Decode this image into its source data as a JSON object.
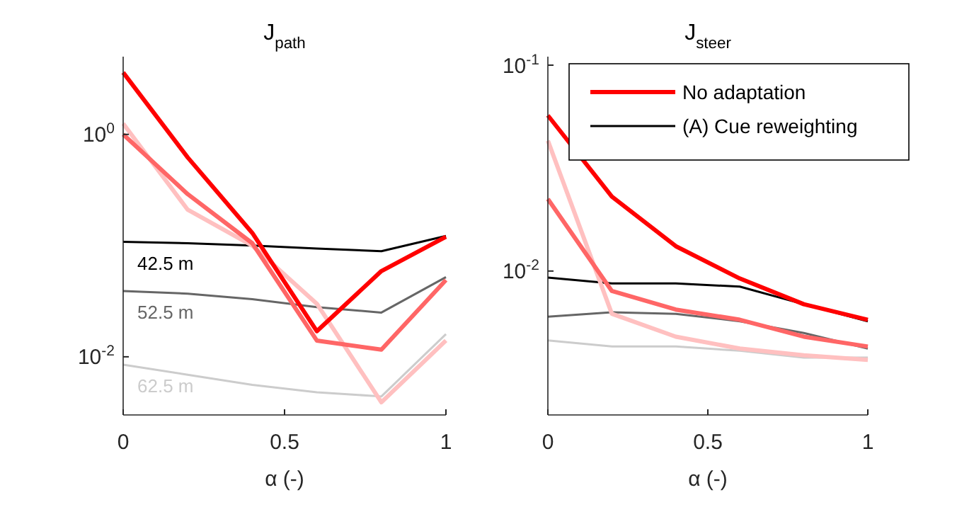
{
  "chart_data": [
    {
      "type": "line",
      "title": "J$_{path}$",
      "xlabel": "α (-)",
      "log": "y",
      "x": [
        0,
        0.2,
        0.4,
        0.6,
        0.8,
        1
      ],
      "xlim": [
        0,
        1
      ],
      "xticks": [
        0,
        0.5,
        1
      ],
      "ylim": [
        0.003,
        5
      ],
      "yticks": [
        {
          "value": 0.01,
          "label": "10$^{-2}$"
        },
        {
          "value": 1,
          "label": "10$^{0}$"
        }
      ],
      "grid": false,
      "legend": false,
      "annotations": [
        "42.5 m",
        "52.5 m",
        "62.5 m"
      ],
      "series": [
        {
          "color": "#000000",
          "values": [
            0.108,
            0.105,
            0.1,
            0.094,
            0.089,
            0.122
          ]
        },
        {
          "color": "#666666",
          "values": [
            0.039,
            0.037,
            0.033,
            0.028,
            0.025,
            0.052
          ]
        },
        {
          "color": "#cccccc",
          "values": [
            0.0085,
            0.0069,
            0.0056,
            0.0048,
            0.0044,
            0.016
          ]
        },
        {
          "color": "#ffc0c0",
          "values": [
            1.25,
            0.21,
            0.1,
            0.03,
            0.0039,
            0.014
          ]
        },
        {
          "color": "#ff6666",
          "values": [
            1.0,
            0.29,
            0.105,
            0.014,
            0.0116,
            0.049
          ]
        },
        {
          "color": "#ff0000",
          "values": [
            3.6,
            0.62,
            0.13,
            0.017,
            0.059,
            0.12
          ]
        }
      ]
    },
    {
      "type": "line",
      "title": "J$_{steer}$",
      "xlabel": "α (-)",
      "log": "y",
      "x": [
        0,
        0.2,
        0.4,
        0.6,
        0.8,
        1
      ],
      "xlim": [
        0,
        1
      ],
      "xticks": [
        0,
        0.5,
        1
      ],
      "ylim": [
        0.002,
        0.11
      ],
      "yticks": [
        {
          "value": 0.01,
          "label": "10$^{-2}$"
        },
        {
          "value": 0.1,
          "label": "10$^{-1}$"
        }
      ],
      "grid": false,
      "legend": "top right",
      "series": [
        {
          "name": "(A) Cue reweighting",
          "color": "#000000",
          "values": [
            0.0093,
            0.0087,
            0.0087,
            0.0084,
            0.0069,
            0.0057
          ]
        },
        {
          "color": "#666666",
          "values": [
            0.006,
            0.0063,
            0.0062,
            0.0057,
            0.005,
            0.0042
          ]
        },
        {
          "color": "#cccccc",
          "values": [
            0.0046,
            0.0043,
            0.0043,
            0.0041,
            0.0038,
            0.0038
          ]
        },
        {
          "color": "#ffc0c0",
          "values": [
            0.043,
            0.0062,
            0.0048,
            0.0042,
            0.0039,
            0.0037
          ]
        },
        {
          "color": "#ff6666",
          "values": [
            0.0224,
            0.008,
            0.0065,
            0.0058,
            0.0048,
            0.0043
          ]
        },
        {
          "name": "No adaptation",
          "color": "#ff0000",
          "values": [
            0.057,
            0.023,
            0.0132,
            0.0092,
            0.0069,
            0.0058
          ]
        }
      ]
    }
  ]
}
